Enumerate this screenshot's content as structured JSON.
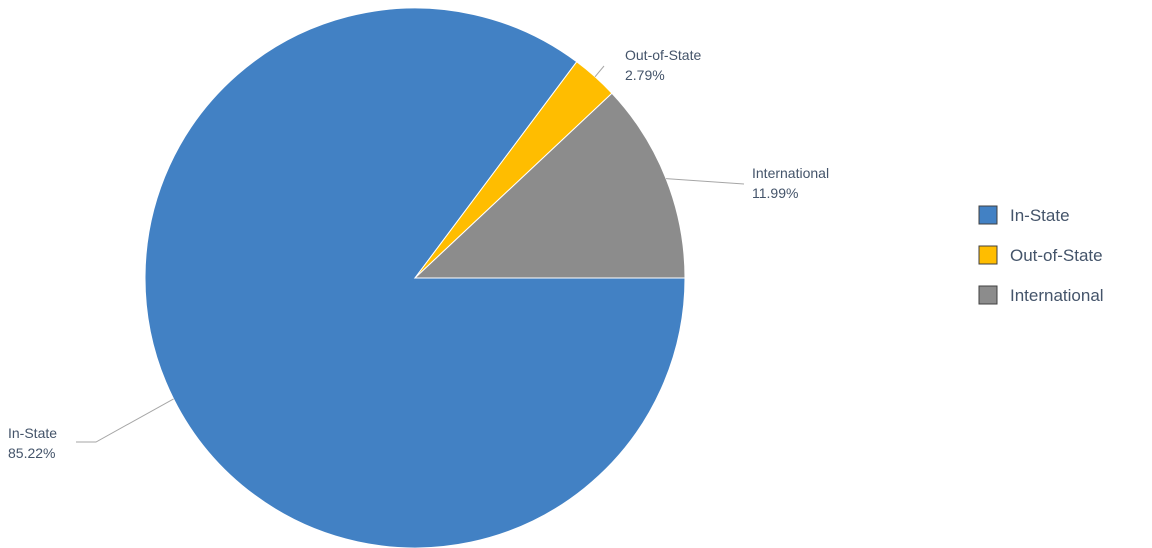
{
  "chart_data": {
    "type": "pie",
    "categories": [
      "In-State",
      "Out-of-State",
      "International"
    ],
    "values": [
      85.22,
      2.79,
      11.99
    ],
    "value_labels": [
      "85.22%",
      "2.79%",
      "11.99%"
    ],
    "colors": [
      "#4281C4",
      "#FFBD00",
      "#8C8C8C"
    ],
    "start_angle_deg": 0,
    "direction": "clockwise",
    "legend_position": "right",
    "title": ""
  }
}
